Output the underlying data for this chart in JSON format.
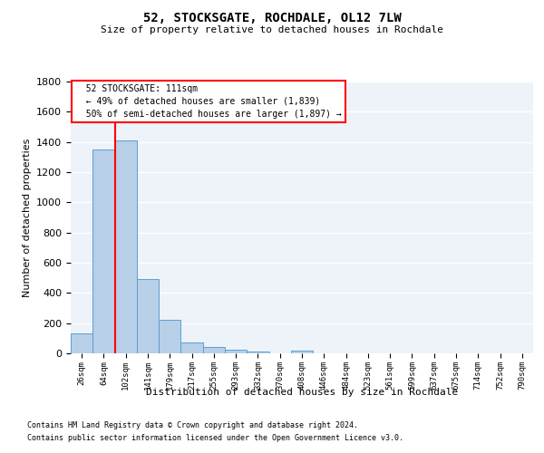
{
  "title": "52, STOCKSGATE, ROCHDALE, OL12 7LW",
  "subtitle": "Size of property relative to detached houses in Rochdale",
  "xlabel": "Distribution of detached houses by size in Rochdale",
  "ylabel": "Number of detached properties",
  "footer_line1": "Contains HM Land Registry data © Crown copyright and database right 2024.",
  "footer_line2": "Contains public sector information licensed under the Open Government Licence v3.0.",
  "bar_labels": [
    "26sqm",
    "64sqm",
    "102sqm",
    "141sqm",
    "179sqm",
    "217sqm",
    "255sqm",
    "293sqm",
    "332sqm",
    "370sqm",
    "408sqm",
    "446sqm",
    "484sqm",
    "523sqm",
    "561sqm",
    "599sqm",
    "637sqm",
    "675sqm",
    "714sqm",
    "752sqm",
    "790sqm"
  ],
  "bar_values": [
    135,
    1350,
    1410,
    490,
    225,
    75,
    45,
    25,
    15,
    0,
    20,
    0,
    0,
    0,
    0,
    0,
    0,
    0,
    0,
    0,
    0
  ],
  "bar_color": "#b8cfe8",
  "bar_edge_color": "#5a9fd4",
  "annotation_label": "52 STOCKSGATE: 111sqm",
  "annotation_line1": "← 49% of detached houses are smaller (1,839)",
  "annotation_line2": "50% of semi-detached houses are larger (1,897) →",
  "vline_x": 1.5,
  "vline_color": "red",
  "ylim": [
    0,
    1800
  ],
  "yticks": [
    0,
    200,
    400,
    600,
    800,
    1000,
    1200,
    1400,
    1600,
    1800
  ],
  "bg_color": "#eef2f9",
  "annotation_box_color": "white",
  "annotation_box_edge": "red",
  "grid_color": "#ffffff"
}
